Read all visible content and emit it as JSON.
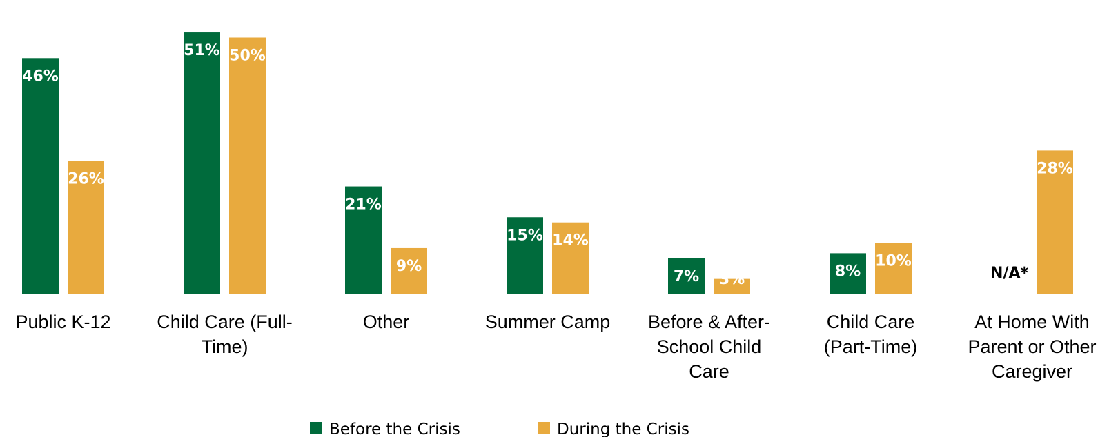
{
  "chart_data": {
    "type": "bar",
    "title": "",
    "xlabel": "",
    "ylabel": "",
    "ylim": [
      0,
      55
    ],
    "grid": false,
    "legend_placement": "bottom",
    "categories": [
      [
        "Public K-12"
      ],
      [
        "Child Care (Full-",
        "Time)"
      ],
      [
        "Other"
      ],
      [
        "Summer Camp"
      ],
      [
        "Before & After-",
        "School Child",
        "Care"
      ],
      [
        "Child Care",
        "(Part-Time)"
      ],
      [
        "At Home With",
        "Parent or Other",
        "Caregiver"
      ]
    ],
    "series": [
      {
        "name": "Before the Crisis",
        "color": "#006B3C",
        "values": [
          46,
          51,
          21,
          15,
          7,
          8,
          null
        ],
        "labels": [
          "46%",
          "51%",
          "21%",
          "15%",
          "7%",
          "8%",
          "N/A*"
        ]
      },
      {
        "name": "During the Crisis",
        "color": "#E8AA3E",
        "values": [
          26,
          50,
          9,
          14,
          3,
          10,
          28
        ],
        "labels": [
          "26%",
          "50%",
          "9%",
          "14%",
          "3%",
          "10%",
          "28%"
        ]
      }
    ]
  }
}
